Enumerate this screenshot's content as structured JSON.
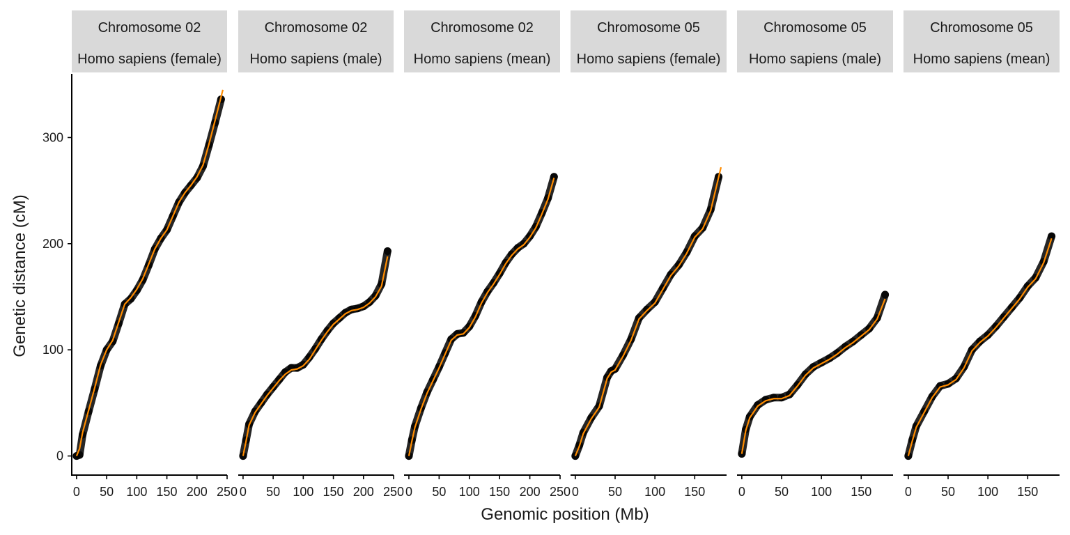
{
  "colors": {
    "strip_bg": "#d9d9d9",
    "points": "#000000",
    "fit_line": "#ff8c00",
    "axis": "#000000"
  },
  "chart_data": {
    "type": "scatter",
    "layout": "faceted",
    "xlabel": "Genomic position (Mb)",
    "ylabel": "Genetic distance (cM)",
    "ylim": [
      -18,
      360
    ],
    "y_ticks": [
      0,
      100,
      200,
      300
    ],
    "legend": "none",
    "grid": false,
    "fit": "smoothed curve",
    "facets": [
      {
        "chromosome": "Chromosome 02",
        "population": "Homo sapiens (female)",
        "xlim": [
          -8,
          250
        ],
        "x_ticks": [
          0,
          50,
          100,
          150,
          200,
          250
        ],
        "points": [
          [
            0,
            0
          ],
          [
            5,
            1
          ],
          [
            10,
            20
          ],
          [
            20,
            42
          ],
          [
            30,
            63
          ],
          [
            40,
            85
          ],
          [
            50,
            100
          ],
          [
            60,
            108
          ],
          [
            70,
            125
          ],
          [
            80,
            143
          ],
          [
            90,
            148
          ],
          [
            100,
            156
          ],
          [
            110,
            166
          ],
          [
            120,
            180
          ],
          [
            130,
            195
          ],
          [
            140,
            205
          ],
          [
            150,
            213
          ],
          [
            160,
            226
          ],
          [
            170,
            239
          ],
          [
            180,
            248
          ],
          [
            190,
            255
          ],
          [
            200,
            262
          ],
          [
            210,
            273
          ],
          [
            220,
            293
          ],
          [
            230,
            314
          ],
          [
            240,
            336
          ]
        ],
        "fit": [
          [
            0,
            0
          ],
          [
            5,
            7
          ],
          [
            10,
            22
          ],
          [
            20,
            43
          ],
          [
            30,
            64
          ],
          [
            40,
            86
          ],
          [
            50,
            100
          ],
          [
            60,
            109
          ],
          [
            70,
            126
          ],
          [
            80,
            143
          ],
          [
            90,
            149
          ],
          [
            100,
            157
          ],
          [
            110,
            167
          ],
          [
            120,
            181
          ],
          [
            130,
            195
          ],
          [
            140,
            205
          ],
          [
            150,
            213
          ],
          [
            160,
            226
          ],
          [
            170,
            239
          ],
          [
            180,
            248
          ],
          [
            190,
            255
          ],
          [
            200,
            263
          ],
          [
            210,
            274
          ],
          [
            220,
            294
          ],
          [
            230,
            316
          ],
          [
            243,
            345
          ]
        ]
      },
      {
        "chromosome": "Chromosome 02",
        "population": "Homo sapiens (male)",
        "xlim": [
          -8,
          250
        ],
        "x_ticks": [
          0,
          50,
          100,
          150,
          200,
          250
        ],
        "points": [
          [
            0,
            0
          ],
          [
            5,
            15
          ],
          [
            10,
            30
          ],
          [
            20,
            42
          ],
          [
            30,
            50
          ],
          [
            40,
            58
          ],
          [
            50,
            65
          ],
          [
            60,
            72
          ],
          [
            70,
            79
          ],
          [
            80,
            83
          ],
          [
            90,
            83
          ],
          [
            100,
            86
          ],
          [
            110,
            93
          ],
          [
            120,
            101
          ],
          [
            130,
            110
          ],
          [
            140,
            118
          ],
          [
            150,
            125
          ],
          [
            160,
            130
          ],
          [
            170,
            135
          ],
          [
            180,
            138
          ],
          [
            190,
            139
          ],
          [
            200,
            141
          ],
          [
            210,
            145
          ],
          [
            220,
            151
          ],
          [
            230,
            162
          ],
          [
            240,
            193
          ]
        ],
        "fit": [
          [
            0,
            0
          ],
          [
            5,
            14
          ],
          [
            10,
            29
          ],
          [
            20,
            41
          ],
          [
            30,
            49
          ],
          [
            40,
            57
          ],
          [
            50,
            64
          ],
          [
            60,
            71
          ],
          [
            70,
            77
          ],
          [
            80,
            81
          ],
          [
            90,
            82
          ],
          [
            100,
            85
          ],
          [
            110,
            91
          ],
          [
            120,
            100
          ],
          [
            130,
            109
          ],
          [
            140,
            117
          ],
          [
            150,
            124
          ],
          [
            160,
            129
          ],
          [
            170,
            134
          ],
          [
            180,
            137
          ],
          [
            190,
            138
          ],
          [
            200,
            140
          ],
          [
            210,
            144
          ],
          [
            220,
            150
          ],
          [
            230,
            160
          ],
          [
            240,
            188
          ]
        ]
      },
      {
        "chromosome": "Chromosome 02",
        "population": "Homo sapiens (mean)",
        "xlim": [
          -8,
          250
        ],
        "x_ticks": [
          0,
          50,
          100,
          150,
          200,
          250
        ],
        "points": [
          [
            0,
            0
          ],
          [
            5,
            15
          ],
          [
            10,
            28
          ],
          [
            20,
            45
          ],
          [
            30,
            60
          ],
          [
            40,
            72
          ],
          [
            50,
            84
          ],
          [
            60,
            97
          ],
          [
            70,
            110
          ],
          [
            80,
            115
          ],
          [
            90,
            116
          ],
          [
            100,
            122
          ],
          [
            110,
            132
          ],
          [
            120,
            145
          ],
          [
            130,
            155
          ],
          [
            140,
            163
          ],
          [
            150,
            172
          ],
          [
            160,
            182
          ],
          [
            170,
            190
          ],
          [
            180,
            196
          ],
          [
            190,
            200
          ],
          [
            200,
            207
          ],
          [
            210,
            216
          ],
          [
            220,
            229
          ],
          [
            230,
            243
          ],
          [
            240,
            263
          ]
        ],
        "fit": [
          [
            0,
            0
          ],
          [
            5,
            14
          ],
          [
            10,
            27
          ],
          [
            20,
            44
          ],
          [
            30,
            59
          ],
          [
            40,
            71
          ],
          [
            50,
            83
          ],
          [
            60,
            96
          ],
          [
            70,
            109
          ],
          [
            80,
            114
          ],
          [
            90,
            115
          ],
          [
            100,
            121
          ],
          [
            110,
            131
          ],
          [
            120,
            144
          ],
          [
            130,
            154
          ],
          [
            140,
            162
          ],
          [
            150,
            171
          ],
          [
            160,
            181
          ],
          [
            170,
            189
          ],
          [
            180,
            195
          ],
          [
            190,
            199
          ],
          [
            200,
            206
          ],
          [
            210,
            215
          ],
          [
            220,
            228
          ],
          [
            230,
            242
          ],
          [
            240,
            262
          ]
        ]
      },
      {
        "chromosome": "Chromosome 05",
        "population": "Homo sapiens (female)",
        "xlim": [
          -6,
          190
        ],
        "x_ticks": [
          0,
          50,
          100,
          150
        ],
        "points": [
          [
            0,
            0
          ],
          [
            5,
            10
          ],
          [
            10,
            22
          ],
          [
            20,
            36
          ],
          [
            30,
            47
          ],
          [
            40,
            74
          ],
          [
            45,
            80
          ],
          [
            50,
            82
          ],
          [
            60,
            95
          ],
          [
            70,
            110
          ],
          [
            80,
            130
          ],
          [
            90,
            138
          ],
          [
            100,
            145
          ],
          [
            110,
            158
          ],
          [
            120,
            171
          ],
          [
            130,
            180
          ],
          [
            140,
            192
          ],
          [
            150,
            207
          ],
          [
            160,
            215
          ],
          [
            170,
            232
          ],
          [
            180,
            263
          ]
        ],
        "fit": [
          [
            0,
            0
          ],
          [
            5,
            9
          ],
          [
            10,
            21
          ],
          [
            20,
            35
          ],
          [
            30,
            46
          ],
          [
            40,
            73
          ],
          [
            45,
            79
          ],
          [
            50,
            81
          ],
          [
            60,
            94
          ],
          [
            70,
            109
          ],
          [
            80,
            129
          ],
          [
            90,
            137
          ],
          [
            100,
            144
          ],
          [
            110,
            157
          ],
          [
            120,
            170
          ],
          [
            130,
            179
          ],
          [
            140,
            191
          ],
          [
            150,
            206
          ],
          [
            160,
            214
          ],
          [
            170,
            231
          ],
          [
            183,
            272
          ]
        ]
      },
      {
        "chromosome": "Chromosome 05",
        "population": "Homo sapiens (male)",
        "xlim": [
          -6,
          190
        ],
        "x_ticks": [
          0,
          50,
          100,
          150
        ],
        "points": [
          [
            0,
            2
          ],
          [
            5,
            25
          ],
          [
            10,
            37
          ],
          [
            20,
            48
          ],
          [
            30,
            53
          ],
          [
            40,
            55
          ],
          [
            50,
            55
          ],
          [
            60,
            58
          ],
          [
            70,
            67
          ],
          [
            80,
            77
          ],
          [
            90,
            84
          ],
          [
            100,
            88
          ],
          [
            110,
            92
          ],
          [
            120,
            97
          ],
          [
            130,
            103
          ],
          [
            140,
            108
          ],
          [
            150,
            114
          ],
          [
            160,
            120
          ],
          [
            170,
            130
          ],
          [
            180,
            152
          ]
        ],
        "fit": [
          [
            0,
            2
          ],
          [
            5,
            24
          ],
          [
            10,
            36
          ],
          [
            20,
            47
          ],
          [
            30,
            52
          ],
          [
            40,
            54
          ],
          [
            50,
            54
          ],
          [
            60,
            57
          ],
          [
            70,
            66
          ],
          [
            80,
            76
          ],
          [
            90,
            83
          ],
          [
            100,
            87
          ],
          [
            110,
            91
          ],
          [
            120,
            96
          ],
          [
            130,
            102
          ],
          [
            140,
            107
          ],
          [
            150,
            113
          ],
          [
            160,
            119
          ],
          [
            170,
            129
          ],
          [
            180,
            148
          ]
        ]
      },
      {
        "chromosome": "Chromosome 05",
        "population": "Homo sapiens (mean)",
        "xlim": [
          -6,
          190
        ],
        "x_ticks": [
          0,
          50,
          100,
          150
        ],
        "points": [
          [
            0,
            0
          ],
          [
            5,
            15
          ],
          [
            10,
            28
          ],
          [
            20,
            42
          ],
          [
            30,
            56
          ],
          [
            40,
            66
          ],
          [
            50,
            68
          ],
          [
            60,
            73
          ],
          [
            70,
            84
          ],
          [
            80,
            100
          ],
          [
            90,
            108
          ],
          [
            100,
            114
          ],
          [
            110,
            122
          ],
          [
            120,
            131
          ],
          [
            130,
            140
          ],
          [
            140,
            149
          ],
          [
            150,
            160
          ],
          [
            160,
            168
          ],
          [
            170,
            183
          ],
          [
            180,
            207
          ]
        ],
        "fit": [
          [
            0,
            0
          ],
          [
            5,
            14
          ],
          [
            10,
            27
          ],
          [
            20,
            41
          ],
          [
            30,
            55
          ],
          [
            40,
            65
          ],
          [
            50,
            67
          ],
          [
            60,
            72
          ],
          [
            70,
            83
          ],
          [
            80,
            99
          ],
          [
            90,
            107
          ],
          [
            100,
            113
          ],
          [
            110,
            121
          ],
          [
            120,
            130
          ],
          [
            130,
            139
          ],
          [
            140,
            148
          ],
          [
            150,
            159
          ],
          [
            160,
            167
          ],
          [
            170,
            182
          ],
          [
            180,
            205
          ]
        ]
      }
    ]
  }
}
